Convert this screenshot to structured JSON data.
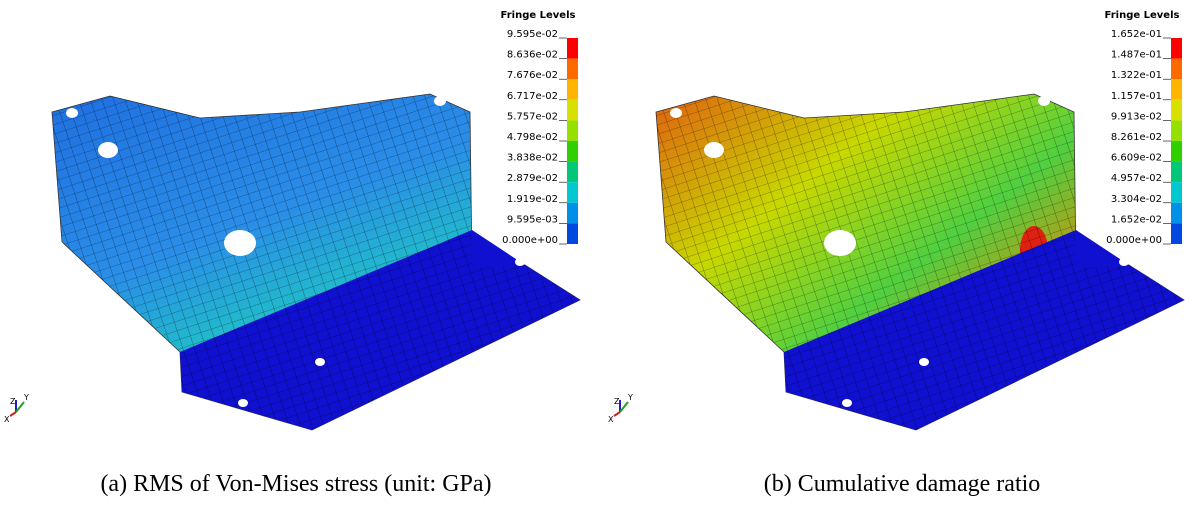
{
  "panels": [
    {
      "legend_title": "Fringe Levels",
      "levels": [
        "9.595e-02",
        "8.636e-02",
        "7.676e-02",
        "6.717e-02",
        "5.757e-02",
        "4.798e-02",
        "3.838e-02",
        "2.879e-02",
        "1.919e-02",
        "9.595e-03",
        "0.000e+00"
      ],
      "colors": [
        "#ff0000",
        "#ff6a00",
        "#ffb400",
        "#d8e000",
        "#96e000",
        "#30d000",
        "#00c878",
        "#00c8d0",
        "#0090e8",
        "#0048e0"
      ],
      "triad": [
        "Z",
        "Y",
        "X"
      ],
      "caption": "(a) RMS of Von-Mises stress (unit: GPa)"
    },
    {
      "legend_title": "Fringe Levels",
      "levels": [
        "1.652e-01",
        "1.487e-01",
        "1.322e-01",
        "1.157e-01",
        "9.913e-02",
        "8.261e-02",
        "6.609e-02",
        "4.957e-02",
        "3.304e-02",
        "1.652e-02",
        "0.000e+00"
      ],
      "colors": [
        "#ff0000",
        "#ff6a00",
        "#ffb400",
        "#d8e000",
        "#96e000",
        "#30d000",
        "#00c878",
        "#00c8d0",
        "#0090e8",
        "#0048e0"
      ],
      "triad": [
        "Z",
        "Y",
        "X"
      ],
      "caption": "(b) Cumulative damage ratio"
    }
  ]
}
